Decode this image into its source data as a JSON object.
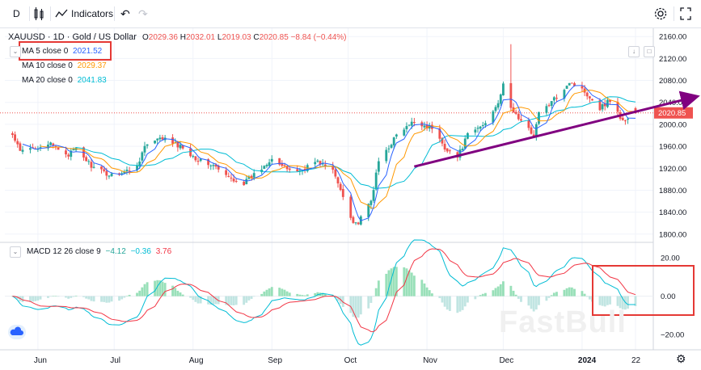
{
  "toolbar": {
    "interval_label": "D",
    "indicators_label": "Indicators"
  },
  "header": {
    "symbol_title": "XAUUSD · 1D · Gold / US Dollar",
    "ohlc": {
      "o_label": "O",
      "o_value": "2029.36",
      "h_label": "H",
      "h_value": "2032.01",
      "l_label": "L",
      "l_value": "2019.03",
      "c_label": "C",
      "c_value": "2020.85",
      "change": "−8.84 (−0.44%)"
    },
    "ma_rows": [
      {
        "label": "MA 5 close 0",
        "value": "2021.52",
        "color": "#2962ff"
      },
      {
        "label": "MA 10 close 0",
        "value": "2029.37",
        "color": "#ff9800"
      },
      {
        "label": "MA 20 close 0",
        "value": "2041.83",
        "color": "#00bcd4"
      }
    ],
    "macd": {
      "label": "MACD 12 26 close 9",
      "hist": "−4.12",
      "hist_color": "#26a69a",
      "macd": "−0.36",
      "macd_color": "#00bcd4",
      "signal": "3.76",
      "signal_color": "#f23645"
    }
  },
  "watermark": "FastBull",
  "colors": {
    "up": "#26a69a",
    "down": "#ef5350",
    "ma5": "#2962ff",
    "ma10": "#ff9800",
    "ma20": "#00bcd4",
    "macd_line": "#00bcd4",
    "signal_line": "#f23645",
    "annotation_box": "#e53935",
    "trend_arrow": "#800080",
    "price_label_bg": "#ef5350"
  },
  "chart_data": {
    "type": "candlestick",
    "title": "XAUUSD · 1D · Gold / US Dollar",
    "price_axis_ticks": [
      "2160.00",
      "2120.00",
      "2080.00",
      "2040.00",
      "2000.00",
      "1960.00",
      "1920.00",
      "1880.00",
      "1840.00",
      "1800.00"
    ],
    "price_ylim": [
      1785,
      2175
    ],
    "last_price_label": "2020.85",
    "macd_axis_ticks": [
      "20.00",
      "0.00",
      "−20.00"
    ],
    "macd_ylim": [
      -28,
      26
    ],
    "x_tick_labels": [
      "Jun",
      "Jul",
      "Aug",
      "Sep",
      "Oct",
      "Nov",
      "Dec",
      "2024",
      "22"
    ],
    "price_anchors": [
      [
        "2023-05-22",
        1980
      ],
      [
        "2023-05-25",
        1950
      ],
      [
        "2023-05-29",
        1955
      ],
      [
        "2023-06-05",
        1965
      ],
      [
        "2023-06-13",
        1945
      ],
      [
        "2023-06-16",
        1955
      ],
      [
        "2023-06-20",
        1935
      ],
      [
        "2023-06-23",
        1920
      ],
      [
        "2023-06-29",
        1908
      ],
      [
        "2023-07-06",
        1915
      ],
      [
        "2023-07-10",
        1925
      ],
      [
        "2023-07-13",
        1960
      ],
      [
        "2023-07-20",
        1975
      ],
      [
        "2023-07-25",
        1963
      ],
      [
        "2023-07-28",
        1958
      ],
      [
        "2023-08-03",
        1935
      ],
      [
        "2023-08-09",
        1925
      ],
      [
        "2023-08-14",
        1905
      ],
      [
        "2023-08-21",
        1893
      ],
      [
        "2023-08-28",
        1920
      ],
      [
        "2023-09-01",
        1940
      ],
      [
        "2023-09-06",
        1920
      ],
      [
        "2023-09-12",
        1915
      ],
      [
        "2023-09-18",
        1932
      ],
      [
        "2023-09-20",
        1930
      ],
      [
        "2023-09-25",
        1915
      ],
      [
        "2023-09-29",
        1870
      ],
      [
        "2023-10-03",
        1822
      ],
      [
        "2023-10-05",
        1820
      ],
      [
        "2023-10-10",
        1860
      ],
      [
        "2023-10-13",
        1932
      ],
      [
        "2023-10-20",
        1980
      ],
      [
        "2023-10-27",
        2005
      ],
      [
        "2023-11-03",
        1993
      ],
      [
        "2023-11-08",
        1958
      ],
      [
        "2023-11-13",
        1940
      ],
      [
        "2023-11-17",
        1980
      ],
      [
        "2023-11-24",
        2002
      ],
      [
        "2023-11-29",
        2042
      ],
      [
        "2023-12-01",
        2070
      ],
      [
        "2023-12-04",
        2030
      ],
      [
        "2023-12-08",
        2005
      ],
      [
        "2023-12-13",
        1980
      ],
      [
        "2023-12-15",
        2020
      ],
      [
        "2023-12-20",
        2040
      ],
      [
        "2023-12-27",
        2078
      ],
      [
        "2024-01-02",
        2060
      ],
      [
        "2024-01-08",
        2030
      ],
      [
        "2024-01-12",
        2045
      ],
      [
        "2024-01-17",
        2005
      ],
      [
        "2024-01-22",
        2020.85
      ]
    ],
    "ma_periods": [
      5,
      10,
      20
    ],
    "macd_params": [
      12,
      26,
      9
    ]
  }
}
